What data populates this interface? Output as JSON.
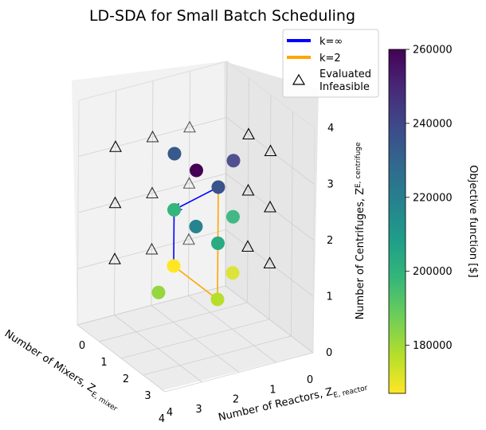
{
  "chart_data": {
    "type": "scatter",
    "title": "LD-SDA for Small Batch Scheduling",
    "axes": {
      "x": {
        "label": "Number of Mixers, Z",
        "sub": "E, mixer",
        "ticks": [
          "0",
          "1",
          "2",
          "3",
          "4"
        ],
        "range": [
          0,
          4
        ]
      },
      "y": {
        "label": "Number of Reactors, Z",
        "sub": "E, reactor",
        "ticks": [
          "0",
          "1",
          "2",
          "3",
          "4"
        ],
        "range": [
          0,
          4
        ]
      },
      "z": {
        "label": "Number of Centrifuges, Z",
        "sub": "E, centrifuge",
        "ticks": [
          "0",
          "1",
          "2",
          "3",
          "4"
        ],
        "range": [
          0,
          4
        ]
      }
    },
    "colorbar": {
      "label": "Objective function [$]",
      "range": [
        167000,
        260000
      ],
      "ticks": [
        "180000",
        "200000",
        "220000",
        "240000",
        "260000"
      ],
      "tick_values": [
        180000,
        200000,
        220000,
        240000,
        260000
      ],
      "colors": [
        "#fde725",
        "#b5de2b",
        "#6ece58",
        "#35b779",
        "#1f9e89",
        "#26828e",
        "#31688e",
        "#3e4989",
        "#482878",
        "#440154"
      ]
    },
    "legend": {
      "k_inf": "k=∞",
      "k2": "k=2",
      "infeasible_line1": "Evaluated",
      "infeasible_line2": "Infeasible"
    },
    "series_colors": {
      "k_inf": "#0000ff",
      "k2": "#ffa500"
    },
    "feasible_points": [
      {
        "x": 2,
        "y": 2,
        "z": 3,
        "obj": 260000
      },
      {
        "x": 2,
        "y": 1,
        "z": 3,
        "obj": 234000
      },
      {
        "x": 1,
        "y": 2,
        "z": 3,
        "obj": 242000
      },
      {
        "x": 2,
        "y": 3,
        "z": 3,
        "obj": 236000
      },
      {
        "x": 2,
        "y": 2,
        "z": 2,
        "obj": 218000
      },
      {
        "x": 2,
        "y": 1,
        "z": 2,
        "obj": 199000
      },
      {
        "x": 1,
        "y": 2,
        "z": 2,
        "obj": 200000
      },
      {
        "x": 2,
        "y": 3,
        "z": 2,
        "obj": 203000
      },
      {
        "x": 3,
        "y": 2,
        "z": 1,
        "obj": 182000
      },
      {
        "x": 2,
        "y": 1,
        "z": 1,
        "obj": 167000
      },
      {
        "x": 1,
        "y": 2,
        "z": 1,
        "obj": 172000
      },
      {
        "x": 2,
        "y": 3,
        "z": 1,
        "obj": 177000
      }
    ],
    "infeasible_points": [
      {
        "x": 1,
        "y": 0,
        "z": 3
      },
      {
        "x": 2,
        "y": 0,
        "z": 3
      },
      {
        "x": 3,
        "y": 0,
        "z": 3
      },
      {
        "x": 0,
        "y": 1,
        "z": 3
      },
      {
        "x": 0,
        "y": 2,
        "z": 3
      },
      {
        "x": 1,
        "y": 0,
        "z": 2
      },
      {
        "x": 2,
        "y": 0,
        "z": 2
      },
      {
        "x": 3,
        "y": 0,
        "z": 2
      },
      {
        "x": 0,
        "y": 1,
        "z": 2
      },
      {
        "x": 0,
        "y": 2,
        "z": 2
      },
      {
        "x": 1,
        "y": 0,
        "z": 1
      },
      {
        "x": 2,
        "y": 0,
        "z": 1
      },
      {
        "x": 3,
        "y": 0,
        "z": 1
      },
      {
        "x": 0,
        "y": 1,
        "z": 1
      },
      {
        "x": 0,
        "y": 2,
        "z": 1
      }
    ],
    "paths": {
      "k_inf": [
        {
          "x": 2,
          "y": 3,
          "z": 3
        },
        {
          "x": 2,
          "y": 1,
          "z": 2
        },
        {
          "x": 2,
          "y": 1,
          "z": 1
        }
      ],
      "k2": [
        {
          "x": 2,
          "y": 1,
          "z": 1
        },
        {
          "x": 2,
          "y": 2,
          "z": 1
        },
        {
          "x": 2,
          "y": 3,
          "z": 1
        },
        {
          "x": 2,
          "y": 3,
          "z": 3
        }
      ]
    }
  }
}
